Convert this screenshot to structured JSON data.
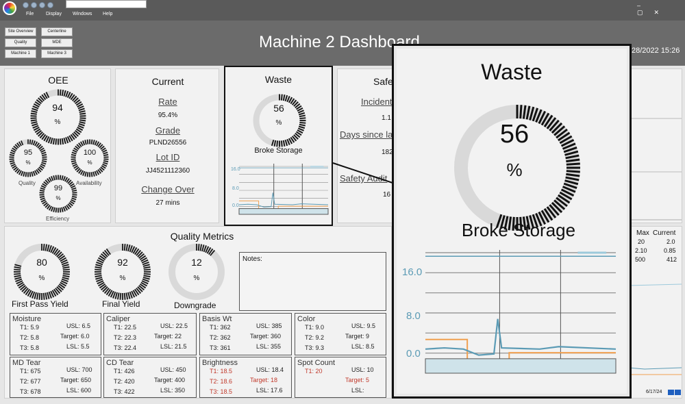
{
  "menu": {
    "file": "File",
    "display": "Display",
    "windows": "Windows",
    "help": "Help"
  },
  "nav": {
    "site_overview": "Site Overview",
    "centerline": "Centerline",
    "quality": "Quality",
    "mde": "MDE",
    "machine1": "Machine 1",
    "machine3": "Machine 3"
  },
  "header": {
    "title": "Machine 2 Dashboard",
    "datetime": "28/2022 15:26"
  },
  "oee": {
    "title": "OEE",
    "value": "94",
    "unit": "%",
    "quality": "95",
    "quality_label": "Quality",
    "availability": "100",
    "availability_label": "Availability",
    "efficiency": "99",
    "efficiency_label": "Efficiency",
    "fractions": [
      0.94,
      0.95,
      1.0,
      0.99
    ]
  },
  "current": {
    "title": "Current",
    "rate_label": "Rate",
    "rate": "95.4%",
    "grade_label": "Grade",
    "grade": "PLND26556",
    "lot_label": "Lot ID",
    "lot": "JJ4521112360",
    "change_label": "Change Over",
    "change": "27 mins"
  },
  "waste": {
    "title": "Waste",
    "value": "56",
    "unit": "%",
    "subtitle": "Broke Storage",
    "fraction": 0.56,
    "ticks": [
      "16.0",
      "8.0",
      "0.0"
    ]
  },
  "safety": {
    "title": "Safe",
    "incident_label": "Incident",
    "incident": "1.1",
    "days_label": "Days since la",
    "days": "182",
    "audit_label": "Safety Audit",
    "audit": "16"
  },
  "zoom": {
    "title": "Waste",
    "value": "56",
    "unit": "%",
    "subtitle": "Broke Storage",
    "ticks": [
      "16.0",
      "8.0",
      "0.0"
    ]
  },
  "right_table": {
    "headers": [
      "Max",
      "Current"
    ],
    "rows": [
      [
        "20",
        "2.0"
      ],
      [
        "2.10",
        "0.85"
      ],
      [
        "500",
        "412"
      ]
    ],
    "footer": "6/17/24"
  },
  "quality_metrics": {
    "title": "Quality Metrics",
    "notes_label": "Notes:",
    "gauges": [
      {
        "value": "80",
        "unit": "%",
        "label": "First Pass Yield",
        "fraction": 0.8
      },
      {
        "value": "92",
        "unit": "%",
        "label": "Final Yield",
        "fraction": 0.92
      },
      {
        "value": "12",
        "unit": "%",
        "label": "Downgrade",
        "fraction": 0.12
      }
    ]
  },
  "metrics": [
    {
      "name": "Moisture",
      "t1": "T1: 5.9",
      "t2": "T2: 5.8",
      "t3": "T3: 5.8",
      "usl": "USL: 6.5",
      "target": "Target: 6.0",
      "lsl": "LSL: 5.5"
    },
    {
      "name": "Caliper",
      "t1": "T1: 22.5",
      "t2": "T2: 22.3",
      "t3": "T3: 22.4",
      "usl": "USL: 22.5",
      "target": "Target: 22",
      "lsl": "LSL: 21.5"
    },
    {
      "name": "Basis Wt",
      "t1": "T1: 362",
      "t2": "T2: 362",
      "t3": "T3: 361",
      "usl": "USL: 385",
      "target": "Target: 360",
      "lsl": "LSL: 355"
    },
    {
      "name": "Color",
      "t1": "T1: 9.0",
      "t2": "T2: 9.2",
      "t3": "T3: 9.3",
      "usl": "USL: 9.5",
      "target": "Target: 9",
      "lsl": "LSL: 8.5"
    },
    {
      "name": "MD Tear",
      "t1": "T1: 675",
      "t2": "T2: 677",
      "t3": "T3: 678",
      "usl": "USL: 700",
      "target": "Target: 650",
      "lsl": "LSL: 600"
    },
    {
      "name": "CD Tear",
      "t1": "T1: 426",
      "t2": "T2: 420",
      "t3": "T3: 422",
      "usl": "USL: 450",
      "target": "Target: 400",
      "lsl": "LSL: 350"
    },
    {
      "name": "Brightness",
      "t1": "T1: 18.5",
      "t2": "T2: 18.6",
      "t3": "T3: 18.5",
      "usl": "USL: 18.4",
      "target": "Target: 18",
      "lsl": "LSL: 17.6"
    },
    {
      "name": "Spot Count",
      "t1": "T1: 20",
      "t2": "",
      "t3": "",
      "usl": "USL: 10",
      "target": "Target: 5",
      "lsl": "LSL:"
    }
  ],
  "colors": {
    "accent": "#111111",
    "track": "#d9d9d9",
    "trend": "#5b9bb5",
    "orange": "#f0a050",
    "red": "#c0392b"
  }
}
